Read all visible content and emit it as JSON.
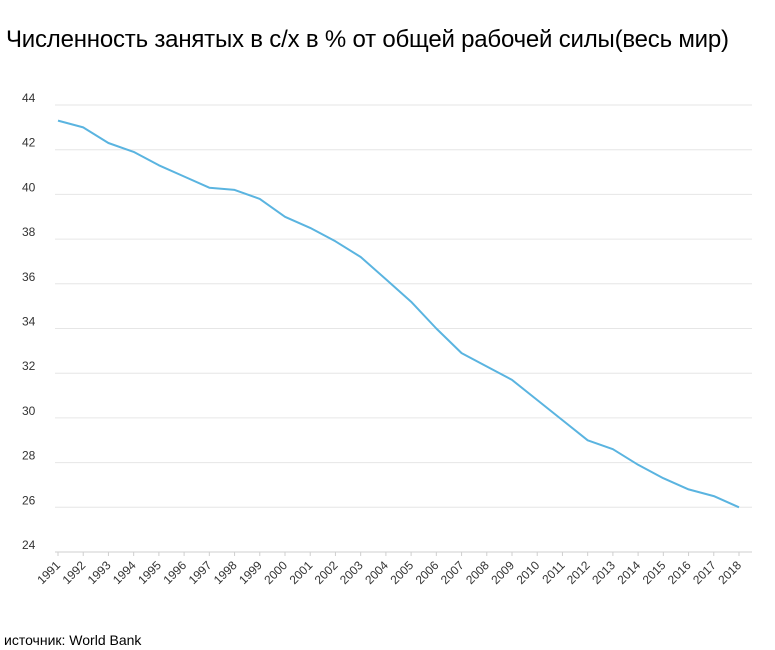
{
  "title": "Численность занятых в с/х в % от общей рабочей силы(весь мир)",
  "source": "источник: World Bank",
  "chart_data": {
    "type": "line",
    "title": "Численность занятых в с/х в % от общей рабочей силы(весь мир)",
    "xlabel": "",
    "ylabel": "",
    "x": [
      "1991",
      "1992",
      "1993",
      "1994",
      "1995",
      "1996",
      "1997",
      "1998",
      "1999",
      "2000",
      "2001",
      "2002",
      "2003",
      "2004",
      "2005",
      "2006",
      "2007",
      "2008",
      "2009",
      "2010",
      "2011",
      "2012",
      "2013",
      "2014",
      "2015",
      "2016",
      "2017",
      "2018"
    ],
    "series": [
      {
        "values": [
          43.3,
          43.0,
          42.3,
          41.9,
          41.3,
          40.8,
          40.3,
          40.2,
          39.8,
          39.0,
          38.5,
          37.9,
          37.2,
          36.2,
          35.2,
          34.0,
          32.9,
          32.3,
          31.7,
          30.8,
          29.9,
          29.0,
          28.6,
          27.9,
          27.3,
          26.8,
          26.5,
          26.0
        ],
        "color": "#5ab4e0"
      }
    ],
    "yticks": [
      24,
      26,
      28,
      30,
      32,
      34,
      36,
      38,
      40,
      42,
      44
    ],
    "ylim": [
      24,
      44
    ],
    "grid": true,
    "legend": "none"
  }
}
